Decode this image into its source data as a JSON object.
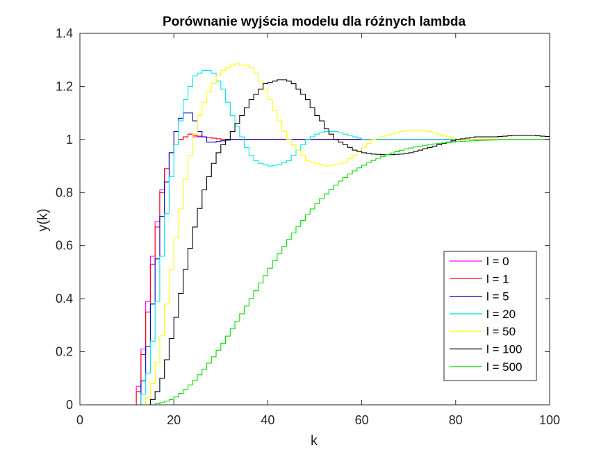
{
  "chart_data": {
    "type": "line",
    "step": true,
    "title": "Porównanie wyjścia modelu dla różnych lambda",
    "xlabel": "k",
    "ylabel": "y(k)",
    "xlim": [
      0,
      100
    ],
    "ylim": [
      0,
      1.4
    ],
    "xticks": [
      0,
      20,
      40,
      60,
      80,
      100
    ],
    "yticks": [
      0,
      0.2,
      0.4,
      0.6,
      0.8,
      1,
      1.2,
      1.4
    ],
    "xtick_labels": [
      "0",
      "20",
      "40",
      "60",
      "80",
      "100"
    ],
    "ytick_labels": [
      "0",
      "0.2",
      "0.4",
      "0.6",
      "0.8",
      "1",
      "1.2",
      "1.4"
    ],
    "grid": false,
    "legend_position": "lower-right",
    "series": [
      {
        "name": "l = 0",
        "color": "#ff00ff",
        "points": [
          [
            0,
            0
          ],
          [
            12,
            0
          ],
          [
            12,
            0.07
          ],
          [
            13,
            0.21
          ],
          [
            14,
            0.39
          ],
          [
            15,
            0.56
          ],
          [
            16,
            0.69
          ],
          [
            17,
            0.81
          ],
          [
            18,
            0.89
          ],
          [
            19,
            0.95
          ],
          [
            20,
            0.98
          ],
          [
            21,
            1.0
          ],
          [
            22,
            1.01
          ],
          [
            23,
            1.02
          ],
          [
            24,
            1.01
          ],
          [
            26,
            1.01
          ],
          [
            28,
            1.005
          ],
          [
            30,
            1.0
          ],
          [
            100,
            1.0
          ]
        ]
      },
      {
        "name": "l = 1",
        "color": "#ff0000",
        "points": [
          [
            0,
            0
          ],
          [
            12,
            0
          ],
          [
            12,
            0.05
          ],
          [
            13,
            0.19
          ],
          [
            14,
            0.35
          ],
          [
            15,
            0.53
          ],
          [
            16,
            0.67
          ],
          [
            17,
            0.8
          ],
          [
            18,
            0.89
          ],
          [
            19,
            0.95
          ],
          [
            20,
            0.98
          ],
          [
            21,
            1.0
          ],
          [
            22,
            1.01
          ],
          [
            23,
            1.02
          ],
          [
            24,
            1.015
          ],
          [
            26,
            1.01
          ],
          [
            28,
            1.005
          ],
          [
            30,
            1.0
          ],
          [
            100,
            1.0
          ]
        ]
      },
      {
        "name": "l = 5",
        "color": "#0000cc",
        "points": [
          [
            0,
            0
          ],
          [
            13,
            0
          ],
          [
            13,
            0.09
          ],
          [
            14,
            0.22
          ],
          [
            15,
            0.38
          ],
          [
            16,
            0.55
          ],
          [
            17,
            0.71
          ],
          [
            18,
            0.84
          ],
          [
            19,
            0.95
          ],
          [
            20,
            1.03
          ],
          [
            21,
            1.08
          ],
          [
            22,
            1.1
          ],
          [
            23,
            1.1
          ],
          [
            24,
            1.07
          ],
          [
            25,
            1.03
          ],
          [
            26,
            1.01
          ],
          [
            27,
            0.99
          ],
          [
            28,
            0.99
          ],
          [
            30,
            0.995
          ],
          [
            32,
            1.0
          ],
          [
            100,
            1.0
          ]
        ]
      },
      {
        "name": "l = 20",
        "color": "#00e5e5",
        "points": [
          [
            0,
            0
          ],
          [
            13,
            0
          ],
          [
            13,
            0.04
          ],
          [
            14,
            0.12
          ],
          [
            15,
            0.24
          ],
          [
            16,
            0.39
          ],
          [
            17,
            0.56
          ],
          [
            18,
            0.72
          ],
          [
            19,
            0.86
          ],
          [
            20,
            0.98
          ],
          [
            21,
            1.07
          ],
          [
            22,
            1.15
          ],
          [
            23,
            1.2
          ],
          [
            24,
            1.24
          ],
          [
            25,
            1.25
          ],
          [
            26,
            1.26
          ],
          [
            27,
            1.26
          ],
          [
            28,
            1.25
          ],
          [
            29,
            1.22
          ],
          [
            30,
            1.19
          ],
          [
            31,
            1.14
          ],
          [
            32,
            1.09
          ],
          [
            33,
            1.05
          ],
          [
            34,
            1.01
          ],
          [
            35,
            0.97
          ],
          [
            36,
            0.94
          ],
          [
            37,
            0.92
          ],
          [
            38,
            0.91
          ],
          [
            40,
            0.9
          ],
          [
            42,
            0.905
          ],
          [
            44,
            0.92
          ],
          [
            46,
            0.96
          ],
          [
            48,
            1.0
          ],
          [
            50,
            1.02
          ],
          [
            52,
            1.03
          ],
          [
            54,
            1.03
          ],
          [
            56,
            1.02
          ],
          [
            58,
            1.01
          ],
          [
            60,
            1.0
          ],
          [
            100,
            1.0
          ]
        ]
      },
      {
        "name": "l = 50",
        "color": "#ffff00",
        "points": [
          [
            0,
            0
          ],
          [
            14,
            0
          ],
          [
            14,
            0.03
          ],
          [
            15,
            0.08
          ],
          [
            16,
            0.16
          ],
          [
            17,
            0.26
          ],
          [
            18,
            0.38
          ],
          [
            19,
            0.51
          ],
          [
            20,
            0.63
          ],
          [
            21,
            0.74
          ],
          [
            22,
            0.85
          ],
          [
            23,
            0.94
          ],
          [
            24,
            1.02
          ],
          [
            25,
            1.09
          ],
          [
            26,
            1.14
          ],
          [
            27,
            1.18
          ],
          [
            28,
            1.21
          ],
          [
            29,
            1.24
          ],
          [
            30,
            1.26
          ],
          [
            31,
            1.27
          ],
          [
            32,
            1.28
          ],
          [
            33,
            1.285
          ],
          [
            34,
            1.28
          ],
          [
            35,
            1.28
          ],
          [
            36,
            1.27
          ],
          [
            37,
            1.25
          ],
          [
            38,
            1.22
          ],
          [
            39,
            1.19
          ],
          [
            40,
            1.15
          ],
          [
            41,
            1.11
          ],
          [
            42,
            1.07
          ],
          [
            43,
            1.03
          ],
          [
            44,
            1.0
          ],
          [
            45,
            0.98
          ],
          [
            46,
            0.96
          ],
          [
            47,
            0.94
          ],
          [
            48,
            0.92
          ],
          [
            50,
            0.91
          ],
          [
            52,
            0.9
          ],
          [
            54,
            0.905
          ],
          [
            56,
            0.915
          ],
          [
            58,
            0.94
          ],
          [
            60,
            0.97
          ],
          [
            62,
            1.0
          ],
          [
            64,
            1.01
          ],
          [
            66,
            1.02
          ],
          [
            68,
            1.03
          ],
          [
            70,
            1.035
          ],
          [
            72,
            1.035
          ],
          [
            74,
            1.03
          ],
          [
            76,
            1.02
          ],
          [
            78,
            1.01
          ],
          [
            80,
            1.0
          ],
          [
            100,
            1.0
          ]
        ]
      },
      {
        "name": "l = 100",
        "color": "#000000",
        "points": [
          [
            0,
            0
          ],
          [
            15,
            0
          ],
          [
            15,
            0.02
          ],
          [
            16,
            0.05
          ],
          [
            17,
            0.1
          ],
          [
            18,
            0.17
          ],
          [
            19,
            0.25
          ],
          [
            20,
            0.33
          ],
          [
            21,
            0.42
          ],
          [
            22,
            0.51
          ],
          [
            23,
            0.59
          ],
          [
            24,
            0.67
          ],
          [
            25,
            0.74
          ],
          [
            26,
            0.81
          ],
          [
            27,
            0.86
          ],
          [
            28,
            0.91
          ],
          [
            29,
            0.95
          ],
          [
            30,
            0.98
          ],
          [
            31,
            1.0
          ],
          [
            32,
            1.03
          ],
          [
            33,
            1.06
          ],
          [
            34,
            1.09
          ],
          [
            35,
            1.12
          ],
          [
            36,
            1.15
          ],
          [
            37,
            1.17
          ],
          [
            38,
            1.19
          ],
          [
            39,
            1.21
          ],
          [
            40,
            1.215
          ],
          [
            41,
            1.22
          ],
          [
            42,
            1.225
          ],
          [
            43,
            1.225
          ],
          [
            44,
            1.22
          ],
          [
            45,
            1.21
          ],
          [
            46,
            1.19
          ],
          [
            47,
            1.17
          ],
          [
            48,
            1.15
          ],
          [
            49,
            1.12
          ],
          [
            50,
            1.09
          ],
          [
            51,
            1.07
          ],
          [
            52,
            1.04
          ],
          [
            53,
            1.02
          ],
          [
            54,
            1.0
          ],
          [
            55,
            0.99
          ],
          [
            56,
            0.98
          ],
          [
            57,
            0.97
          ],
          [
            58,
            0.96
          ],
          [
            60,
            0.95
          ],
          [
            62,
            0.945
          ],
          [
            64,
            0.943
          ],
          [
            66,
            0.943
          ],
          [
            68,
            0.945
          ],
          [
            70,
            0.95
          ],
          [
            72,
            0.96
          ],
          [
            74,
            0.97
          ],
          [
            76,
            0.98
          ],
          [
            78,
            0.99
          ],
          [
            80,
            1.0
          ],
          [
            84,
            1.01
          ],
          [
            88,
            1.01
          ],
          [
            92,
            1.015
          ],
          [
            96,
            1.015
          ],
          [
            100,
            1.01
          ]
        ]
      },
      {
        "name": "l = 500",
        "color": "#00dd00",
        "points": [
          [
            0,
            0
          ],
          [
            15,
            0
          ],
          [
            16,
            0.004
          ],
          [
            17,
            0.008
          ],
          [
            18,
            0.014
          ],
          [
            19,
            0.02
          ],
          [
            20,
            0.03
          ],
          [
            21,
            0.043
          ],
          [
            22,
            0.058
          ],
          [
            23,
            0.075
          ],
          [
            24,
            0.093
          ],
          [
            25,
            0.113
          ],
          [
            26,
            0.134
          ],
          [
            27,
            0.157
          ],
          [
            28,
            0.181
          ],
          [
            29,
            0.206
          ],
          [
            30,
            0.232
          ],
          [
            31,
            0.259
          ],
          [
            32,
            0.287
          ],
          [
            33,
            0.315
          ],
          [
            34,
            0.343
          ],
          [
            35,
            0.372
          ],
          [
            36,
            0.401
          ],
          [
            37,
            0.43
          ],
          [
            38,
            0.459
          ],
          [
            39,
            0.487
          ],
          [
            40,
            0.515
          ],
          [
            41,
            0.543
          ],
          [
            42,
            0.57
          ],
          [
            43,
            0.597
          ],
          [
            44,
            0.623
          ],
          [
            45,
            0.648
          ],
          [
            46,
            0.672
          ],
          [
            47,
            0.695
          ],
          [
            48,
            0.717
          ],
          [
            49,
            0.738
          ],
          [
            50,
            0.758
          ],
          [
            51,
            0.777
          ],
          [
            52,
            0.795
          ],
          [
            53,
            0.812
          ],
          [
            54,
            0.828
          ],
          [
            55,
            0.843
          ],
          [
            56,
            0.857
          ],
          [
            57,
            0.87
          ],
          [
            58,
            0.882
          ],
          [
            59,
            0.893
          ],
          [
            60,
            0.903
          ],
          [
            61,
            0.912
          ],
          [
            62,
            0.921
          ],
          [
            63,
            0.929
          ],
          [
            64,
            0.936
          ],
          [
            65,
            0.943
          ],
          [
            66,
            0.949
          ],
          [
            67,
            0.954
          ],
          [
            68,
            0.959
          ],
          [
            69,
            0.964
          ],
          [
            70,
            0.968
          ],
          [
            71,
            0.972
          ],
          [
            72,
            0.975
          ],
          [
            73,
            0.978
          ],
          [
            74,
            0.981
          ],
          [
            75,
            0.983
          ],
          [
            76,
            0.985
          ],
          [
            77,
            0.987
          ],
          [
            78,
            0.989
          ],
          [
            79,
            0.99
          ],
          [
            80,
            0.992
          ],
          [
            82,
            0.994
          ],
          [
            84,
            0.996
          ],
          [
            86,
            0.997
          ],
          [
            88,
            0.998
          ],
          [
            90,
            0.999
          ],
          [
            95,
            1.0
          ],
          [
            100,
            1.0
          ]
        ]
      }
    ]
  }
}
